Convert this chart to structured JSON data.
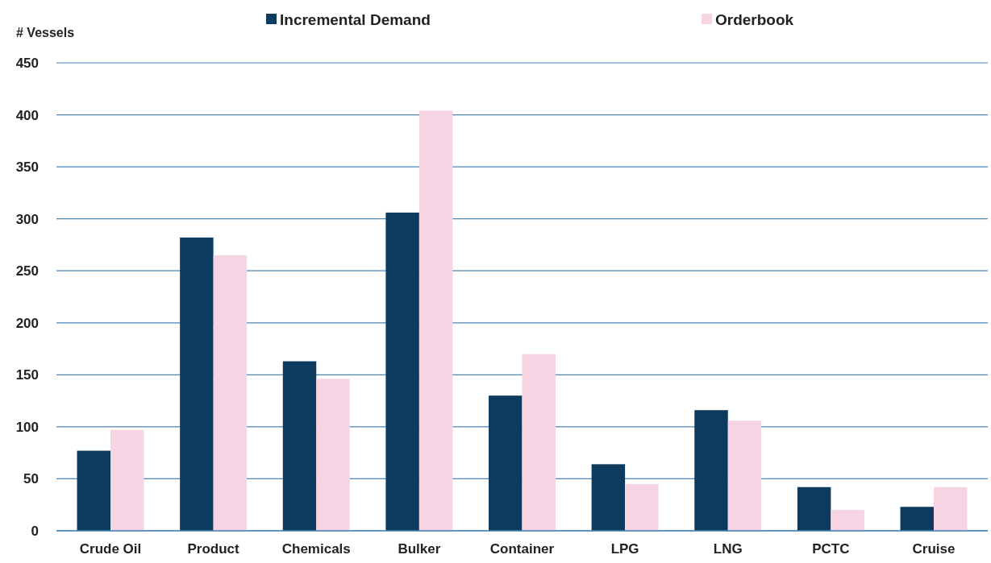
{
  "chart_data": {
    "type": "bar",
    "ylabel": "# Vessels",
    "categories": [
      "Crude Oil",
      "Product",
      "Chemicals",
      "Bulker",
      "Container",
      "LPG",
      "LNG",
      "PCTC",
      "Cruise"
    ],
    "series": [
      {
        "name": "Incremental Demand",
        "color": "#0d3b5e",
        "values": [
          77,
          282,
          163,
          306,
          130,
          64,
          116,
          42,
          23
        ]
      },
      {
        "name": "Orderbook",
        "color": "#f7d4e3",
        "values": [
          97,
          265,
          146,
          404,
          170,
          45,
          106,
          20,
          42
        ]
      }
    ],
    "ylim": [
      0,
      450
    ],
    "yticks": [
      0,
      50,
      100,
      150,
      200,
      250,
      300,
      350,
      400,
      450
    ],
    "grid": "y",
    "legend": "top"
  }
}
